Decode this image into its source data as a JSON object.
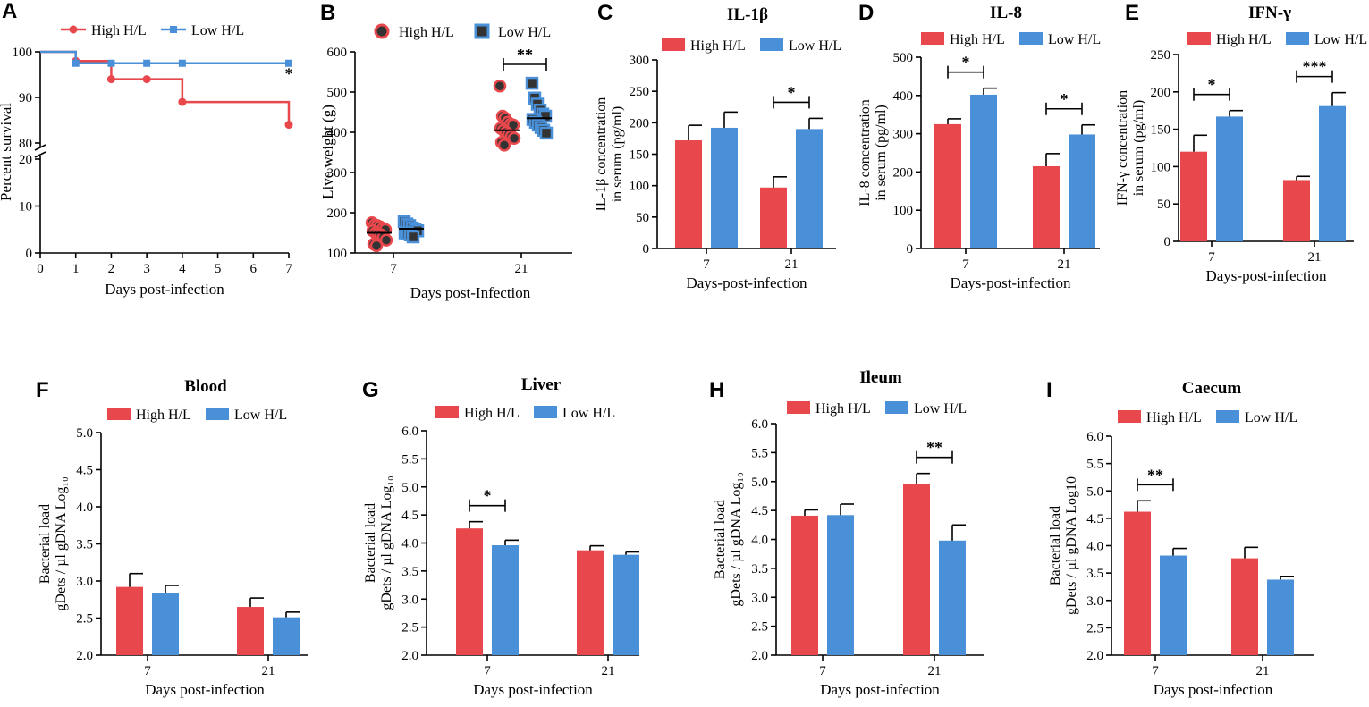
{
  "colors": {
    "high": "#e8474c",
    "low": "#4a90d9",
    "axis": "#000000"
  },
  "legend": {
    "high": "High H/L",
    "low": "Low H/L"
  },
  "chart_data": [
    {
      "id": "A",
      "type": "line",
      "letter": "A",
      "title": "",
      "xlabel": "Days post-infection",
      "ylabel": "Percent survival",
      "x_ticks": [
        "0",
        "1",
        "2",
        "3",
        "4",
        "5",
        "6",
        "7"
      ],
      "y_ticks_upper": [
        "80",
        "90",
        "100"
      ],
      "y_ticks_lower": [
        "0",
        "10",
        "20"
      ],
      "xlim": [
        0,
        7
      ],
      "ylim_upper": [
        80,
        100
      ],
      "ylim_lower": [
        0,
        20
      ],
      "series": [
        {
          "name": "High H/L",
          "x": [
            0,
            1,
            2,
            3,
            4,
            7
          ],
          "y": [
            100,
            98,
            94,
            94,
            89,
            84
          ]
        },
        {
          "name": "Low H/L",
          "x": [
            0,
            1,
            2,
            3,
            4,
            7
          ],
          "y": [
            100,
            97.5,
            97.5,
            97.5,
            97.5,
            97.5
          ]
        }
      ],
      "annotations": [
        {
          "x": 7,
          "text": "*"
        }
      ]
    },
    {
      "id": "B",
      "type": "scatter",
      "letter": "B",
      "title": "",
      "xlabel": "Days post-Infection",
      "ylabel": "Live weight (g)",
      "categories": [
        "7",
        "21"
      ],
      "ylim": [
        100,
        600
      ],
      "y_ticks": [
        "100",
        "200",
        "300",
        "400",
        "500",
        "600"
      ],
      "series": [
        {
          "name": "High H/L",
          "groups": [
            {
              "mean": 150,
              "points": [
                175,
                170,
                168,
                165,
                160,
                158,
                155,
                150,
                148,
                145,
                140,
                132,
                122,
                118
              ]
            },
            {
              "mean": 405,
              "points": [
                515,
                440,
                435,
                425,
                420,
                418,
                410,
                405,
                400,
                395,
                390,
                385,
                375,
                368
              ]
            }
          ]
        },
        {
          "name": "Low H/L",
          "groups": [
            {
              "mean": 160,
              "points": [
                178,
                172,
                168,
                162,
                158,
                155,
                150,
                148,
                145,
                140
              ]
            },
            {
              "mean": 435,
              "points": [
                522,
                485,
                470,
                455,
                445,
                440,
                432,
                425,
                418,
                412,
                405,
                398
              ]
            }
          ]
        }
      ],
      "sig": [
        {
          "cat": 1,
          "text": "**"
        }
      ]
    },
    {
      "id": "C",
      "type": "bar",
      "letter": "C",
      "title": "IL-1β",
      "xlabel": "Days-post-infection",
      "ylabel_lines": [
        "IL-1β concentration",
        "in serum (pg/ml)"
      ],
      "categories": [
        "7",
        "21"
      ],
      "ylim": [
        0,
        300
      ],
      "y_ticks": [
        "0",
        "50",
        "100",
        "150",
        "200",
        "250",
        "300"
      ],
      "series": [
        {
          "name": "High H/L",
          "values": [
            172,
            97
          ],
          "errors": [
            24,
            17
          ]
        },
        {
          "name": "Low H/L",
          "values": [
            192,
            190
          ],
          "errors": [
            25,
            17
          ]
        }
      ],
      "sig": [
        {
          "cat": 1,
          "text": "*"
        }
      ]
    },
    {
      "id": "D",
      "type": "bar",
      "letter": "D",
      "title": "IL-8",
      "xlabel": "Days-post-infection",
      "ylabel_lines": [
        "IL-8 concentration",
        "in serum (pg/ml)"
      ],
      "categories": [
        "7",
        "21"
      ],
      "ylim": [
        0,
        500
      ],
      "y_ticks": [
        "0",
        "100",
        "200",
        "300",
        "400",
        "500"
      ],
      "series": [
        {
          "name": "High H/L",
          "values": [
            325,
            215
          ],
          "errors": [
            14,
            33
          ]
        },
        {
          "name": "Low H/L",
          "values": [
            402,
            298
          ],
          "errors": [
            17,
            25
          ]
        }
      ],
      "sig": [
        {
          "cat": 0,
          "text": "*"
        },
        {
          "cat": 1,
          "text": "*"
        }
      ]
    },
    {
      "id": "E",
      "type": "bar",
      "letter": "E",
      "title": "IFN-γ",
      "xlabel": "Days-post-infection",
      "ylabel_lines": [
        "IFN-γ concentration",
        "in serum (pg/ml)"
      ],
      "categories": [
        "7",
        "21"
      ],
      "ylim": [
        0,
        250
      ],
      "y_ticks": [
        "0",
        "50",
        "100",
        "150",
        "200",
        "250"
      ],
      "series": [
        {
          "name": "High H/L",
          "values": [
            120,
            82
          ],
          "errors": [
            22,
            5
          ]
        },
        {
          "name": "Low H/L",
          "values": [
            167,
            181
          ],
          "errors": [
            8,
            18
          ]
        }
      ],
      "sig": [
        {
          "cat": 0,
          "text": "*"
        },
        {
          "cat": 1,
          "text": "***"
        }
      ]
    },
    {
      "id": "F",
      "type": "bar",
      "letter": "F",
      "title": "Blood",
      "xlabel": "Days post-infection",
      "ylabel_lines": [
        "Bacterial load",
        "gDets / µl gDNA Log₁₀"
      ],
      "categories": [
        "7",
        "21"
      ],
      "ylim": [
        2.0,
        5.0
      ],
      "y_ticks": [
        "2.0",
        "2.5",
        "3.0",
        "3.5",
        "4.0",
        "4.5",
        "5.0"
      ],
      "series": [
        {
          "name": "High H/L",
          "values": [
            2.92,
            2.65
          ],
          "errors": [
            0.18,
            0.12
          ]
        },
        {
          "name": "Low H/L",
          "values": [
            2.84,
            2.51
          ],
          "errors": [
            0.1,
            0.07
          ]
        }
      ],
      "sig": []
    },
    {
      "id": "G",
      "type": "bar",
      "letter": "G",
      "title": "Liver",
      "xlabel": "Days post-infection",
      "ylabel_lines": [
        "Bacterial load",
        "gDets / µl gDNA Log₁₀"
      ],
      "categories": [
        "7",
        "21"
      ],
      "ylim": [
        2.0,
        6.0
      ],
      "y_ticks": [
        "2.0",
        "2.5",
        "3.0",
        "3.5",
        "4.0",
        "4.5",
        "5.0",
        "5.5",
        "6.0"
      ],
      "series": [
        {
          "name": "High H/L",
          "values": [
            4.26,
            3.87
          ],
          "errors": [
            0.12,
            0.08
          ]
        },
        {
          "name": "Low H/L",
          "values": [
            3.96,
            3.79
          ],
          "errors": [
            0.09,
            0.05
          ]
        }
      ],
      "sig": [
        {
          "cat": 0,
          "text": "*"
        }
      ]
    },
    {
      "id": "H",
      "type": "bar",
      "letter": "H",
      "title": "Ileum",
      "xlabel": "Days post-infection",
      "ylabel_lines": [
        "Bacterial load",
        "gDets / µl gDNA Log₁₀"
      ],
      "categories": [
        "7",
        "21"
      ],
      "ylim": [
        2.0,
        6.0
      ],
      "y_ticks": [
        "2.0",
        "2.5",
        "3.0",
        "3.5",
        "4.0",
        "4.5",
        "5.0",
        "5.5",
        "6.0"
      ],
      "series": [
        {
          "name": "High H/L",
          "values": [
            4.41,
            4.95
          ],
          "errors": [
            0.1,
            0.19
          ]
        },
        {
          "name": "Low H/L",
          "values": [
            4.42,
            3.98
          ],
          "errors": [
            0.19,
            0.27
          ]
        }
      ],
      "sig": [
        {
          "cat": 1,
          "text": "**"
        }
      ]
    },
    {
      "id": "I",
      "type": "bar",
      "letter": "I",
      "title": "Caecum",
      "xlabel": "Days post-infection",
      "ylabel_lines": [
        "Bacterial load",
        "gDets / µl gDNA Log10"
      ],
      "categories": [
        "7",
        "21"
      ],
      "ylim": [
        2.0,
        6.0
      ],
      "y_ticks": [
        "2.0",
        "2.5",
        "3.0",
        "3.5",
        "4.0",
        "4.5",
        "5.0",
        "5.5",
        "6.0"
      ],
      "series": [
        {
          "name": "High H/L",
          "values": [
            4.62,
            3.77
          ],
          "errors": [
            0.2,
            0.2
          ]
        },
        {
          "name": "Low H/L",
          "values": [
            3.82,
            3.38
          ],
          "errors": [
            0.13,
            0.06
          ]
        }
      ],
      "sig": [
        {
          "cat": 0,
          "text": "**"
        }
      ]
    }
  ]
}
